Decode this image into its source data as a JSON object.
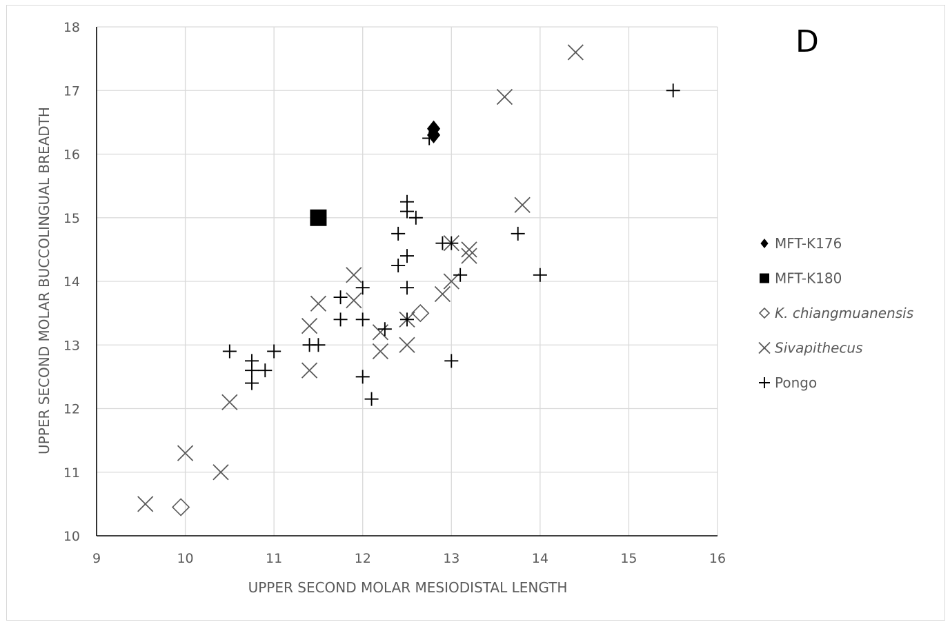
{
  "chart_data": {
    "type": "scatter",
    "panel_label": "D",
    "xlabel": "UPPER SECOND MOLAR MESIODISTAL LENGTH",
    "ylabel": "UPPER SECOND MOLAR BUCCOLINGUAL BREADTH",
    "xlim": [
      9,
      16
    ],
    "ylim": [
      10,
      18
    ],
    "x_ticks": [
      "9",
      "10",
      "11",
      "12",
      "13",
      "14",
      "15",
      "16"
    ],
    "y_ticks": [
      "10",
      "11",
      "12",
      "13",
      "14",
      "15",
      "16",
      "17",
      "18"
    ],
    "grid": true,
    "legend_position": "right",
    "series": [
      {
        "name": "MFT-K176",
        "marker": "filled-diamond",
        "italic": false,
        "color": "#000000",
        "points": [
          [
            12.8,
            16.4
          ],
          [
            12.8,
            16.3
          ]
        ]
      },
      {
        "name": "MFT-K180",
        "marker": "filled-square",
        "italic": false,
        "color": "#000000",
        "points": [
          [
            11.5,
            15.0
          ]
        ]
      },
      {
        "name": "K. chiangmuanensis",
        "marker": "open-diamond",
        "italic": true,
        "color": "#595959",
        "points": [
          [
            9.95,
            10.45
          ],
          [
            12.65,
            13.5
          ]
        ]
      },
      {
        "name": "Sivapithecus",
        "marker": "x",
        "italic": true,
        "color": "#595959",
        "points": [
          [
            9.55,
            10.5
          ],
          [
            10.0,
            11.3
          ],
          [
            10.4,
            11.0
          ],
          [
            10.5,
            12.1
          ],
          [
            11.4,
            13.3
          ],
          [
            11.4,
            12.6
          ],
          [
            11.5,
            13.65
          ],
          [
            11.9,
            14.1
          ],
          [
            11.9,
            13.7
          ],
          [
            12.2,
            12.9
          ],
          [
            12.2,
            13.2
          ],
          [
            12.5,
            13.0
          ],
          [
            12.5,
            13.4
          ],
          [
            12.9,
            13.8
          ],
          [
            13.0,
            14.0
          ],
          [
            13.0,
            14.6
          ],
          [
            13.2,
            14.5
          ],
          [
            13.2,
            14.4
          ],
          [
            13.6,
            16.9
          ],
          [
            13.8,
            15.2
          ],
          [
            14.4,
            17.6
          ]
        ]
      },
      {
        "name": "Pongo",
        "marker": "plus",
        "italic": false,
        "color": "#000000",
        "points": [
          [
            10.5,
            12.9
          ],
          [
            10.75,
            12.75
          ],
          [
            10.75,
            12.6
          ],
          [
            10.75,
            12.4
          ],
          [
            10.9,
            12.6
          ],
          [
            11.0,
            12.9
          ],
          [
            11.4,
            13.0
          ],
          [
            11.5,
            13.0
          ],
          [
            11.75,
            13.75
          ],
          [
            11.75,
            13.4
          ],
          [
            12.0,
            13.9
          ],
          [
            12.0,
            13.4
          ],
          [
            12.0,
            12.5
          ],
          [
            12.1,
            12.15
          ],
          [
            12.25,
            13.25
          ],
          [
            12.4,
            14.75
          ],
          [
            12.4,
            14.25
          ],
          [
            12.5,
            15.25
          ],
          [
            12.5,
            15.1
          ],
          [
            12.5,
            14.4
          ],
          [
            12.5,
            13.9
          ],
          [
            12.5,
            13.4
          ],
          [
            12.6,
            15.0
          ],
          [
            12.75,
            16.25
          ],
          [
            12.9,
            14.6
          ],
          [
            13.0,
            14.6
          ],
          [
            13.0,
            12.75
          ],
          [
            13.1,
            14.1
          ],
          [
            13.75,
            14.75
          ],
          [
            14.0,
            14.1
          ],
          [
            15.5,
            17.0
          ]
        ]
      }
    ]
  }
}
